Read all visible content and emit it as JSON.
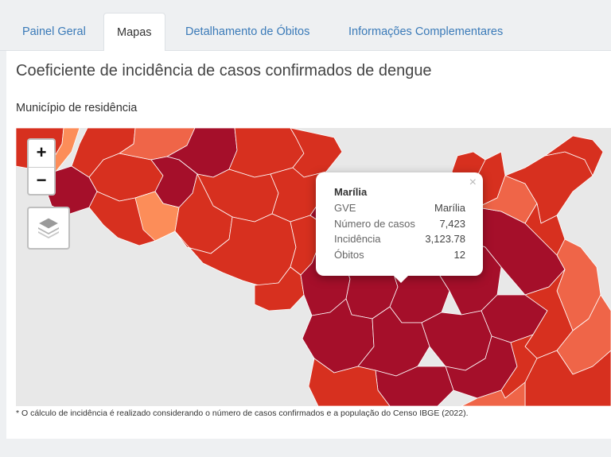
{
  "tabs": [
    {
      "label": "Painel Geral",
      "active": false
    },
    {
      "label": "Mapas",
      "active": true
    },
    {
      "label": "Detalhamento de Óbitos",
      "active": false
    },
    {
      "label": "Informações Complementares",
      "active": false
    }
  ],
  "panel": {
    "title": "Coeficiente de incidência de casos confirmados de dengue",
    "subtitle": "Município de residência"
  },
  "map": {
    "zoom_in": "+",
    "zoom_out": "−",
    "layers_icon": "layers-icon",
    "colors": {
      "dark_red": "#a50f2a",
      "red": "#d7301f",
      "orange": "#ef6548",
      "light_orange": "#fc8d59",
      "background": "#e8e8e8"
    }
  },
  "popup": {
    "title": "Marília",
    "close": "×",
    "rows": [
      {
        "key": "GVE",
        "value": "Marília"
      },
      {
        "key": "Número de casos",
        "value": "7,423"
      },
      {
        "key": "Incidência",
        "value": "3,123.78"
      },
      {
        "key": "Óbitos",
        "value": "12"
      }
    ]
  },
  "footnote": "* O cálculo de incidência é realizado considerando o número de casos confirmados e a população do Censo IBGE (2022)."
}
